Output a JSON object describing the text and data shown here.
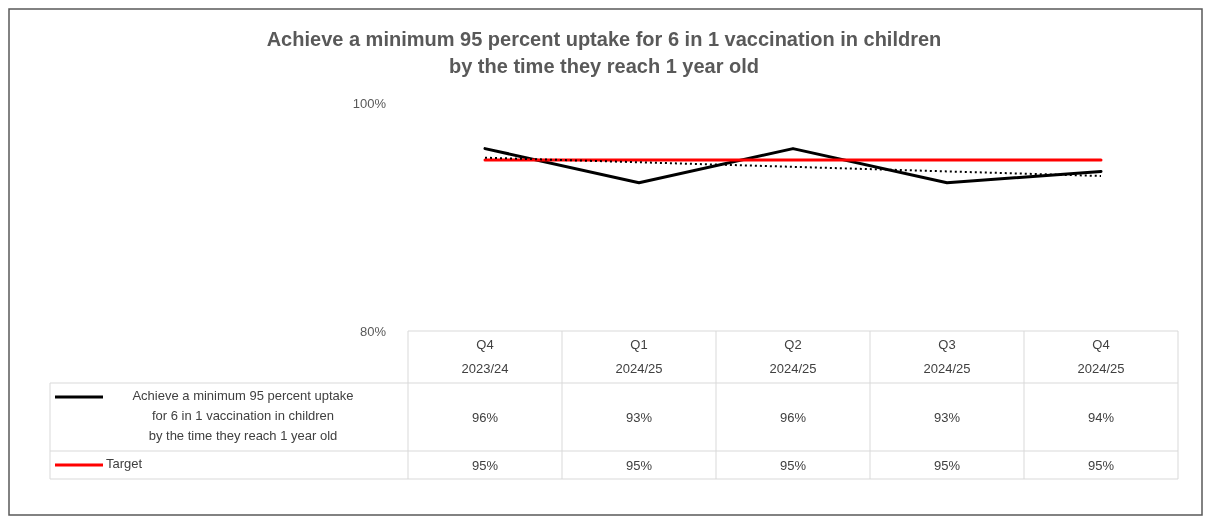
{
  "chart_data": {
    "type": "line",
    "title": "Achieve a minimum 95 percent uptake for 6 in 1 vaccination in children\nby the time they reach 1 year old",
    "categories": [
      "Q4 2023/24",
      "Q1 2024/25",
      "Q2 2024/25",
      "Q3 2024/25",
      "Q4 2024/25"
    ],
    "series": [
      {
        "name": "Achieve a minimum 95 percent uptake for 6 in 1 vaccination in children by the time they reach 1 year old",
        "color": "#000000",
        "values": [
          96,
          93,
          96,
          93,
          94
        ],
        "value_labels": [
          "96%",
          "93%",
          "96%",
          "93%",
          "94%"
        ]
      },
      {
        "name": "Target",
        "color": "#ff0000",
        "values": [
          95,
          95,
          95,
          95,
          95
        ],
        "value_labels": [
          "95%",
          "95%",
          "95%",
          "95%",
          "95%"
        ]
      },
      {
        "type": "line",
        "color": "#000000",
        "line_style": "dotted",
        "values": [
          95.2,
          94.8,
          94.4,
          94,
          93.6
        ]
      }
    ],
    "ylim": [
      80,
      100
    ],
    "yticks": [
      {
        "value": 80,
        "label": "80%"
      },
      {
        "value": 100,
        "label": "100%"
      }
    ],
    "line_style": "solid",
    "legend": "bottom",
    "grid": false
  }
}
